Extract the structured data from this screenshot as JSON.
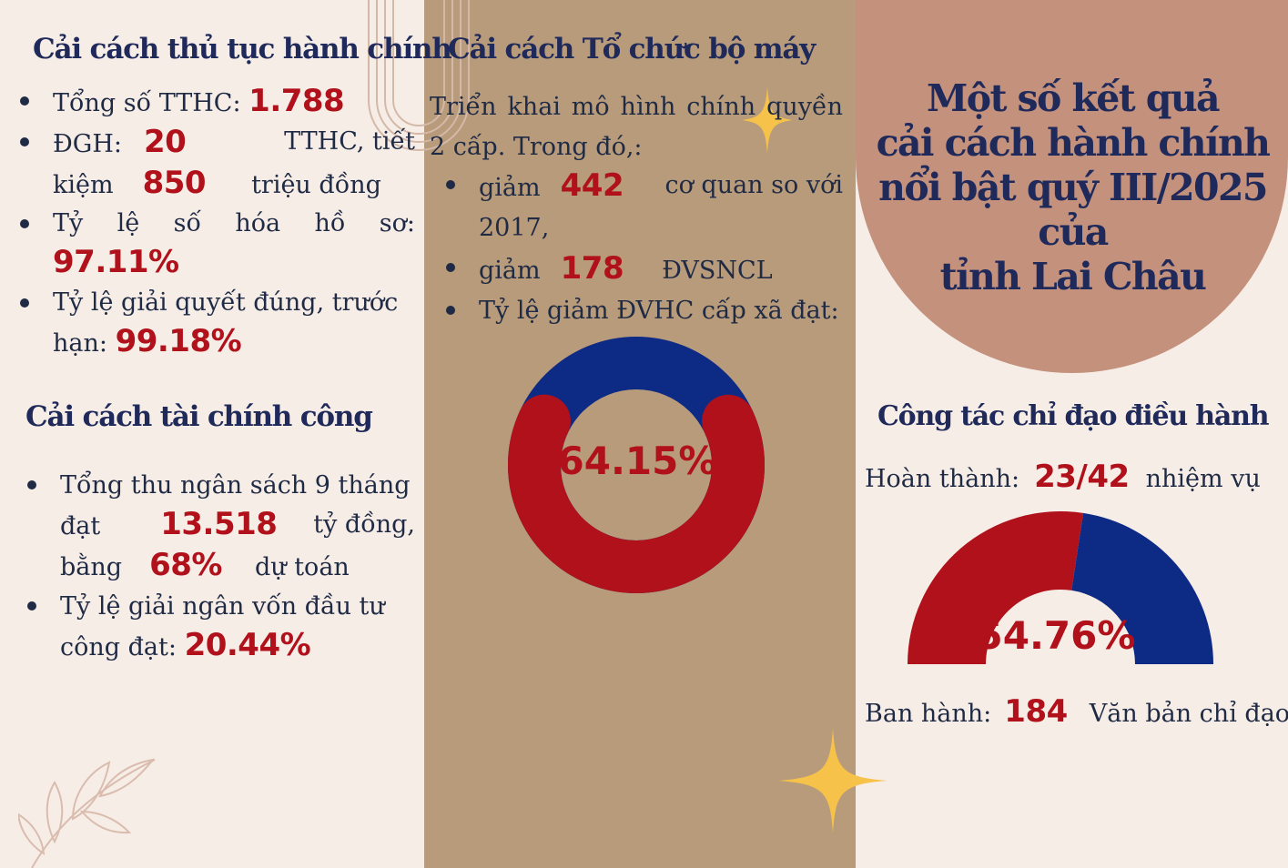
{
  "admin_procedures": {
    "title": "Cải cách thủ tục hành chính",
    "total_label": "Tổng số TTHC:",
    "total_value": "1.788",
    "dgh_label": "ĐGH:",
    "dgh_value": "20",
    "dgh_suffix": "TTHC, tiết",
    "save_label": "kiệm",
    "save_value": "850",
    "save_suffix": "triệu đồng",
    "digitize_label": "Tỷ lệ số hóa hồ sơ:",
    "digitize_value": "97.11%",
    "ontime_label_1": "Tỷ lệ giải quyết đúng, trước",
    "ontime_label_2": "hạn:",
    "ontime_value": "99.18%"
  },
  "organization": {
    "title": "Cải cách Tổ chức bộ máy",
    "intro": "Triển khai mô hình chính quyền 2 cấp. Trong đó,:",
    "reduce1_label": "giảm",
    "reduce1_value": "442",
    "reduce1_suffix": "cơ quan so với",
    "reduce1_year": "2017,",
    "reduce2_label": "giảm",
    "reduce2_value": "178",
    "reduce2_suffix": "ĐVSNCL",
    "commune_label": "Tỷ lệ giảm ĐVHC cấp xã đạt:",
    "commune_percent": "64.15%"
  },
  "public_finance": {
    "title": "Cải cách  tài chính công",
    "revenue_label_1": "Tổng thu ngân sách 9 tháng",
    "revenue_label_2": "đạt",
    "revenue_value": "13.518",
    "revenue_suffix": "tỷ đồng,",
    "estimate_label": "bằng",
    "estimate_value": "68%",
    "estimate_suffix": "dự toán",
    "disburse_label_1": "Tỷ lệ giải ngân vốn đầu tư",
    "disburse_label_2": "công đạt:",
    "disburse_value": "20.44%"
  },
  "main_title": {
    "line1": "Một số kết quả",
    "line2": "cải cách hành chính",
    "line3": "nổi bật quý III/2025 của",
    "line4": "tỉnh  Lai Châu"
  },
  "direction": {
    "title": "Công tác chỉ đạo điều hành",
    "completed_label": "Hoàn thành:",
    "completed_value": "23/42",
    "completed_suffix": "nhiệm vụ",
    "completed_percent": "54.76%",
    "issued_label": "Ban hành:",
    "issued_value": "184",
    "issued_suffix": "Văn bản chỉ đạo"
  },
  "chart_data": [
    {
      "type": "pie",
      "donut": true,
      "values": [
        64.15,
        35.85
      ],
      "label": "64.15%",
      "colors": [
        "#b0111b",
        "#0d2a85"
      ]
    },
    {
      "type": "pie",
      "semicircle": true,
      "values": [
        54.76,
        45.24
      ],
      "label": "54.76%",
      "colors": [
        "#b0111b",
        "#0d2a85"
      ]
    }
  ],
  "colors": {
    "background": "#f7ede7",
    "middle_column": "#b89b7a",
    "blob": "#c4917d",
    "accent_red": "#b0111b",
    "accent_blue": "#0d2a85",
    "title_navy": "#1f2a5a",
    "sparkle": "#f6c24a"
  }
}
